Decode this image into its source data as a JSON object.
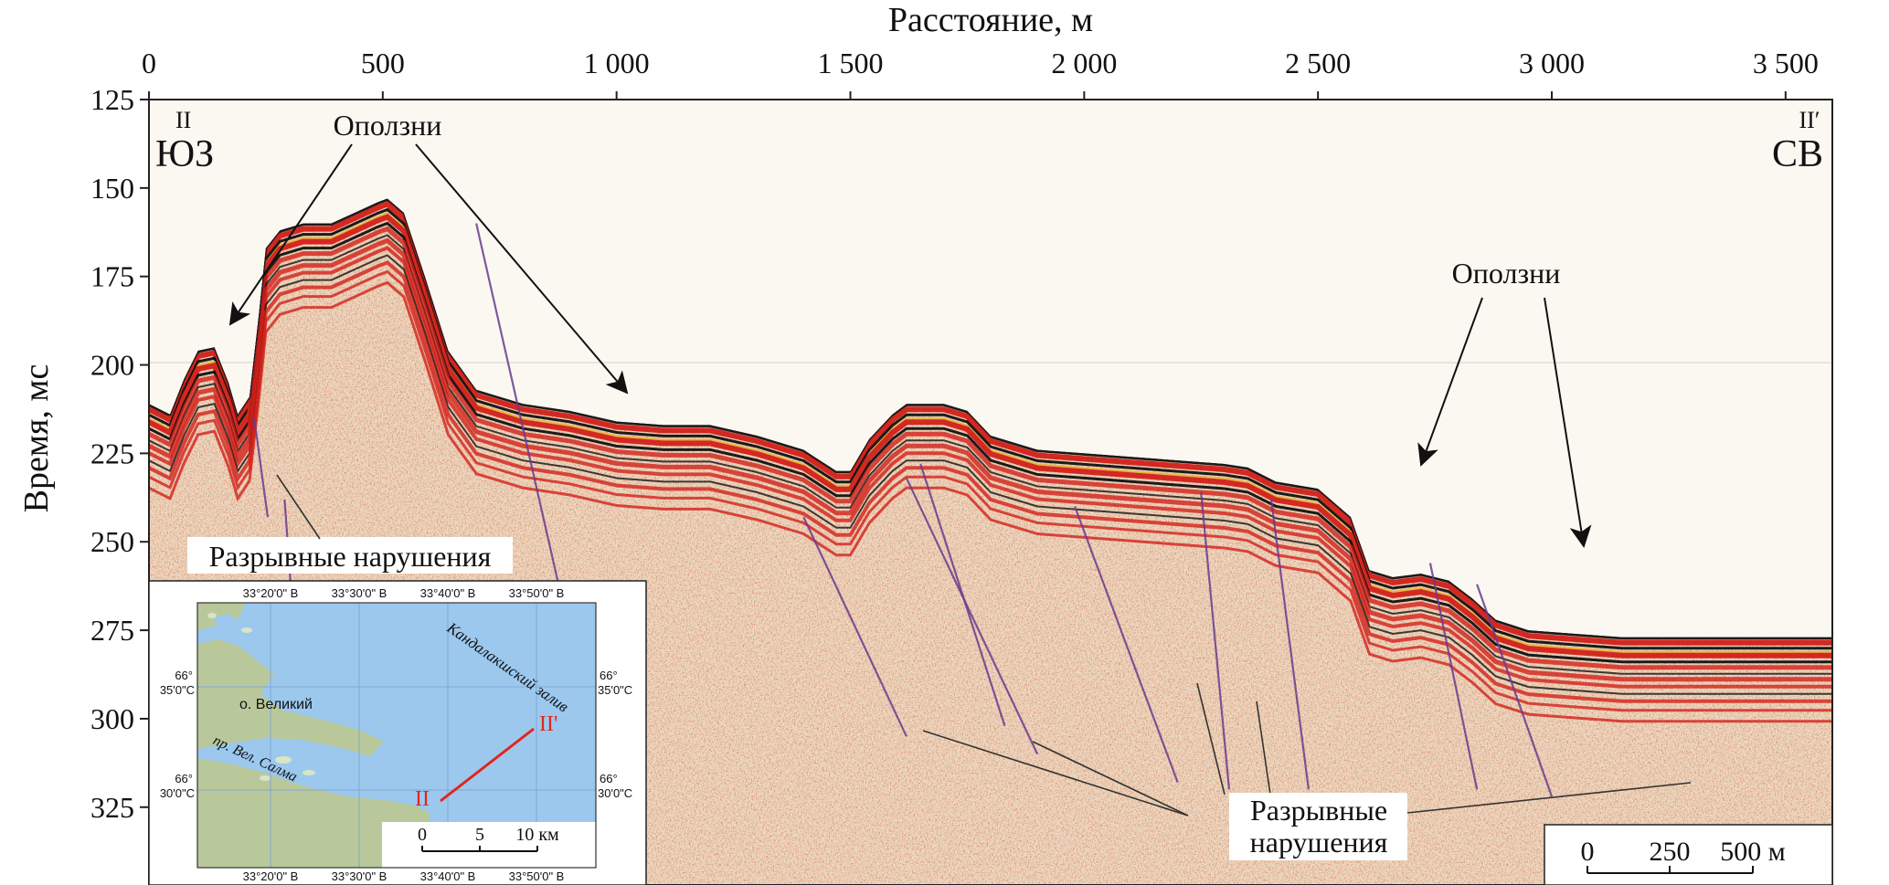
{
  "figure": {
    "x_axis": {
      "title": "Расстояние, м",
      "ticks": [
        {
          "value": 0,
          "label": "0"
        },
        {
          "value": 500,
          "label": "500"
        },
        {
          "value": 1000,
          "label": "1 000"
        },
        {
          "value": 1500,
          "label": "1 500"
        },
        {
          "value": 2000,
          "label": "2 000"
        },
        {
          "value": 2500,
          "label": "2 500"
        },
        {
          "value": 3000,
          "label": "3 000"
        },
        {
          "value": 3500,
          "label": "3 500"
        }
      ],
      "range": [
        0,
        3600
      ]
    },
    "y_axis": {
      "title": "Время, мс",
      "ticks": [
        {
          "value": 125,
          "label": "125"
        },
        {
          "value": 150,
          "label": "150"
        },
        {
          "value": 175,
          "label": "175"
        },
        {
          "value": 200,
          "label": "200"
        },
        {
          "value": 225,
          "label": "225"
        },
        {
          "value": 250,
          "label": "250"
        },
        {
          "value": 275,
          "label": "275"
        },
        {
          "value": 300,
          "label": "300"
        },
        {
          "value": 325,
          "label": "325"
        }
      ],
      "range": [
        125,
        347
      ]
    },
    "profile": {
      "start_label": "II",
      "start_direction": "ЮЗ",
      "end_label": "II′",
      "end_direction": "СВ"
    },
    "seafloor": [
      [
        0,
        211
      ],
      [
        45,
        214
      ],
      [
        75,
        204
      ],
      [
        105,
        196
      ],
      [
        140,
        195
      ],
      [
        170,
        205
      ],
      [
        190,
        214
      ],
      [
        215,
        209
      ],
      [
        235,
        186
      ],
      [
        250,
        167
      ],
      [
        280,
        162
      ],
      [
        330,
        160
      ],
      [
        390,
        160
      ],
      [
        440,
        157
      ],
      [
        490,
        154
      ],
      [
        510,
        153
      ],
      [
        545,
        157
      ],
      [
        590,
        175
      ],
      [
        640,
        196
      ],
      [
        700,
        207
      ],
      [
        800,
        211
      ],
      [
        900,
        213
      ],
      [
        1000,
        216
      ],
      [
        1100,
        217
      ],
      [
        1200,
        217
      ],
      [
        1300,
        220
      ],
      [
        1400,
        224
      ],
      [
        1470,
        230
      ],
      [
        1500,
        230
      ],
      [
        1540,
        221
      ],
      [
        1590,
        214
      ],
      [
        1620,
        211
      ],
      [
        1700,
        211
      ],
      [
        1750,
        213
      ],
      [
        1800,
        220
      ],
      [
        1900,
        224
      ],
      [
        2000,
        225
      ],
      [
        2100,
        226
      ],
      [
        2200,
        227
      ],
      [
        2300,
        228
      ],
      [
        2350,
        229
      ],
      [
        2410,
        233
      ],
      [
        2500,
        235
      ],
      [
        2570,
        243
      ],
      [
        2610,
        258
      ],
      [
        2660,
        260
      ],
      [
        2720,
        259
      ],
      [
        2780,
        261
      ],
      [
        2830,
        266
      ],
      [
        2880,
        272
      ],
      [
        2950,
        275
      ],
      [
        3050,
        276
      ],
      [
        3150,
        277
      ],
      [
        3250,
        277
      ],
      [
        3300,
        277
      ]
    ],
    "colors": {
      "reflector_red": "#d2201a",
      "reflector_black": "#111111",
      "reflector_yellow": "#e8b33a",
      "noise_bg": "#fbf8f2",
      "fault_line": "#6a3b8e",
      "map_sea": "#9cc8ee",
      "map_land": "#b9c89a"
    },
    "annotations": {
      "landslides_1": "Оползни",
      "landslides_2": "Оползни",
      "faults_1": "Разрывные нарушения",
      "faults_2_line1": "Разрывные",
      "faults_2_line2": "нарушения"
    },
    "scalebar": {
      "labels": [
        "0",
        "250",
        "500 м"
      ]
    },
    "inset_map": {
      "top_lon_labels": [
        "33°20'0\" В",
        "33°30'0\" В",
        "33°40'0\" В",
        "33°50'0\" В"
      ],
      "bottom_lon_labels": [
        "33°20'0\" В",
        "33°30'0\" В",
        "33°40'0\" В",
        "33°50'0\" В"
      ],
      "lat_labels_left": [
        {
          "deg": "66°",
          "min": "35'0\"С"
        },
        {
          "deg": "66°",
          "min": "30'0\"С"
        }
      ],
      "lat_labels_right": [
        {
          "deg": "66°",
          "min": "35'0\"С"
        },
        {
          "deg": "66°",
          "min": "30'0\"С"
        }
      ],
      "bay_label": "Кандалакшский залив",
      "island_label": "о. Великий",
      "strait_label": "пр. Вел. Салма",
      "line_start": "II",
      "line_end": "II'",
      "scale_labels": [
        "0",
        "5",
        "10 км"
      ]
    }
  }
}
